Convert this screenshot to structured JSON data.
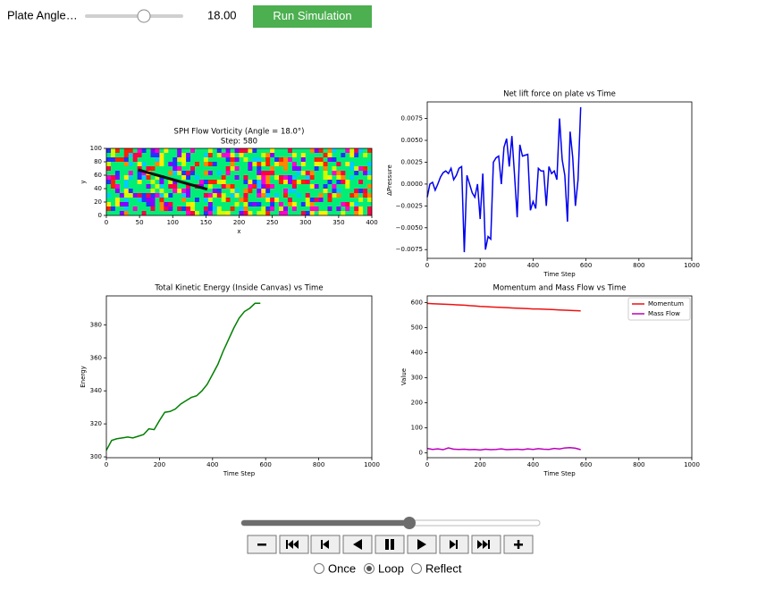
{
  "controls": {
    "angle_label": "Plate Angle…",
    "angle_value": "18.00",
    "run_button": "Run Simulation"
  },
  "player": {
    "modes": [
      "Once",
      "Loop",
      "Reflect"
    ],
    "selected": "Loop"
  },
  "chart_data": [
    {
      "type": "image",
      "title": "SPH Flow Vorticity (Angle = 18.0°)",
      "subtitle": "Step: 580",
      "xlabel": "x",
      "ylabel": "y",
      "xlim": [
        0,
        400
      ],
      "xticks": [
        0,
        50,
        100,
        150,
        200,
        250,
        300,
        350,
        400
      ],
      "ylim": [
        0,
        100
      ],
      "yticks": [
        0,
        20,
        40,
        60,
        80,
        100
      ]
    },
    {
      "type": "line",
      "title": "Net lift force on plate vs Time",
      "xlabel": "Time Step",
      "ylabel": "ΔPressure",
      "x": [
        0,
        10,
        20,
        30,
        40,
        50,
        60,
        70,
        80,
        90,
        100,
        110,
        120,
        130,
        140,
        150,
        160,
        170,
        180,
        190,
        200,
        210,
        220,
        230,
        240,
        250,
        260,
        270,
        280,
        290,
        300,
        310,
        320,
        330,
        340,
        350,
        360,
        370,
        380,
        390,
        400,
        410,
        420,
        430,
        440,
        450,
        460,
        470,
        480,
        490,
        500,
        510,
        520,
        530,
        540,
        550,
        560,
        570,
        580
      ],
      "series": [
        {
          "color": "#0000ee",
          "values": [
            -0.0015,
            0.0,
            0.0002,
            -0.0007,
            0.0,
            0.0008,
            0.0013,
            0.0015,
            0.0012,
            0.0018,
            0.0005,
            0.001,
            0.0018,
            0.002,
            -0.0078,
            0.001,
            0.0,
            -0.001,
            -0.0015,
            0.0,
            -0.004,
            0.0012,
            -0.0075,
            -0.006,
            -0.0063,
            0.0025,
            0.003,
            0.0032,
            0.0,
            0.0042,
            0.0052,
            0.002,
            0.0055,
            0.001,
            -0.0038,
            0.0045,
            0.0032,
            0.0033,
            0.0034,
            -0.003,
            -0.002,
            -0.0028,
            0.0018,
            0.0015,
            0.0015,
            -0.0025,
            0.002,
            0.0012,
            0.0015,
            0.0005,
            0.0075,
            0.0028,
            0.001,
            -0.0043,
            0.006,
            0.003,
            -0.0025,
            0.0005,
            0.0088
          ]
        }
      ],
      "xlim": [
        0,
        1000
      ],
      "xticks": [
        0,
        200,
        400,
        600,
        800,
        1000
      ],
      "ylim": [
        -0.0085,
        0.0094
      ],
      "yticks": [
        {
          "value": -0.0075,
          "label": "−0.0075"
        },
        {
          "value": -0.005,
          "label": "−0.0050"
        },
        {
          "value": -0.0025,
          "label": "−0.0025"
        },
        {
          "value": 0,
          "label": "0.0000"
        },
        {
          "value": 0.0025,
          "label": "0.0025"
        },
        {
          "value": 0.005,
          "label": "0.0050"
        },
        {
          "value": 0.0075,
          "label": "0.0075"
        }
      ]
    },
    {
      "type": "line",
      "title": "Total Kinetic Energy (Inside Canvas) vs Time",
      "xlabel": "Time Step",
      "ylabel": "Energy",
      "x": [
        0,
        20,
        40,
        60,
        80,
        100,
        120,
        140,
        160,
        180,
        200,
        220,
        240,
        260,
        280,
        300,
        320,
        340,
        360,
        380,
        400,
        420,
        440,
        460,
        480,
        500,
        520,
        540,
        560,
        580
      ],
      "series": [
        {
          "color": "#008000",
          "values": [
            304,
            310,
            311,
            311.5,
            312,
            311.5,
            312.5,
            313.5,
            317,
            316.5,
            322,
            327,
            327.5,
            329,
            332,
            334,
            336,
            337,
            340,
            344,
            350,
            356,
            364,
            371,
            378,
            384,
            388,
            390,
            393,
            393
          ]
        }
      ],
      "xlim": [
        0,
        1000
      ],
      "xticks": [
        0,
        200,
        400,
        600,
        800,
        1000
      ],
      "ylim": [
        299.5,
        397.5
      ],
      "yticks": [
        300,
        320,
        340,
        360,
        380
      ]
    },
    {
      "type": "line",
      "title": "Momentum and Mass Flow vs Time",
      "xlabel": "Time Step",
      "ylabel": "Value",
      "legend": "upper right",
      "x": [
        0,
        20,
        40,
        60,
        80,
        100,
        120,
        140,
        160,
        180,
        200,
        220,
        240,
        260,
        280,
        300,
        320,
        340,
        360,
        380,
        400,
        420,
        440,
        460,
        480,
        500,
        520,
        540,
        560,
        580
      ],
      "series": [
        {
          "name": "Momentum",
          "color": "#ee1111",
          "values": [
            597,
            596,
            595,
            594,
            593,
            592,
            591,
            590,
            588,
            587,
            585,
            584,
            583,
            582,
            581,
            580,
            579,
            578,
            577,
            576,
            575,
            575,
            574,
            573,
            572,
            571,
            570,
            569,
            568,
            567
          ]
        },
        {
          "name": "Mass Flow",
          "color": "#bb00bb",
          "values": [
            18,
            14,
            16,
            13,
            20,
            15,
            14,
            15,
            13,
            14,
            12,
            15,
            13,
            14,
            16,
            13,
            14,
            15,
            13,
            16,
            14,
            17,
            15,
            14,
            18,
            16,
            20,
            21,
            19,
            13
          ]
        }
      ],
      "xlim": [
        0,
        1000
      ],
      "xticks": [
        0,
        200,
        400,
        600,
        800,
        1000
      ],
      "ylim": [
        -19,
        627
      ],
      "yticks": [
        0,
        100,
        200,
        300,
        400,
        500,
        600
      ]
    }
  ]
}
